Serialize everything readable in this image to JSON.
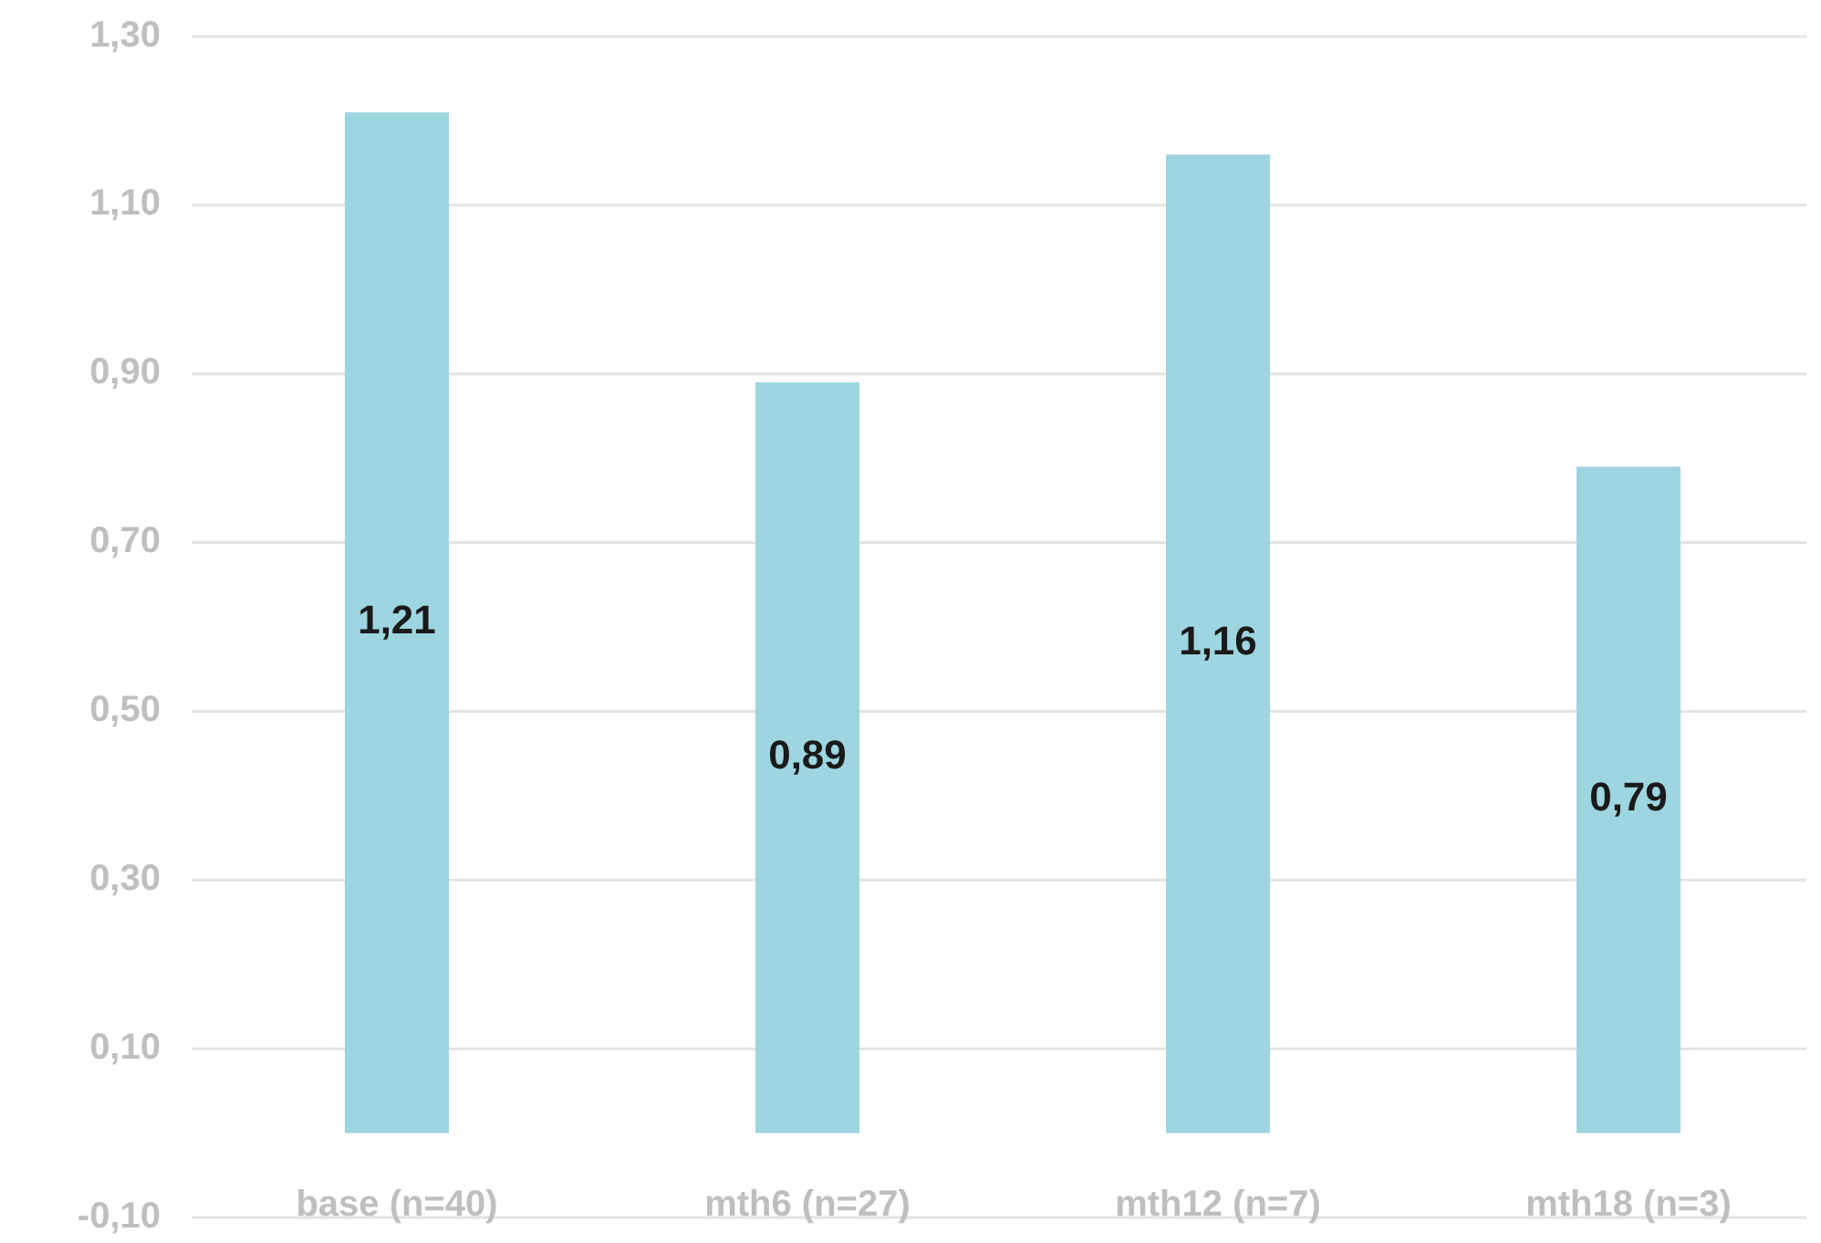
{
  "chart_data": {
    "type": "bar",
    "categories": [
      "base (n=40)",
      "mth6 (n=27)",
      "mth12 (n=7)",
      "mth18 (n=3)"
    ],
    "values": [
      1.21,
      0.89,
      1.16,
      0.79
    ],
    "value_labels": [
      "1,21",
      "0,89",
      "1,16",
      "0,79"
    ],
    "color": "#9dd5e0",
    "ylim": [
      -0.1,
      1.3
    ],
    "yticks": [
      {
        "value": -0.1,
        "label": "-0,10"
      },
      {
        "value": 0.1,
        "label": "0,10"
      },
      {
        "value": 0.3,
        "label": "0,30"
      },
      {
        "value": 0.5,
        "label": "0,50"
      },
      {
        "value": 0.7,
        "label": "0,70"
      },
      {
        "value": 0.9,
        "label": "0,90"
      },
      {
        "value": 1.1,
        "label": "1,10"
      },
      {
        "value": 1.3,
        "label": "1,30"
      }
    ],
    "grid": "y"
  }
}
